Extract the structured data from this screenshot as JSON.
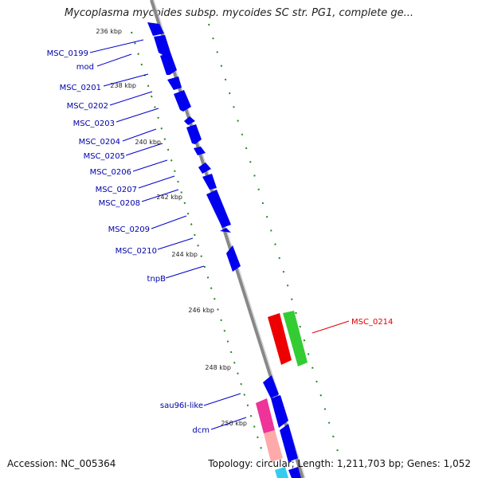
{
  "title": "Mycoplasma mycoides subsp. mycoides SC str. PG1, complete ge...",
  "footer": {
    "accession": "Accession: NC_005364",
    "summary": "Topology: circular; Length: 1,211,703 bp; Genes: 1,052"
  },
  "colors": {
    "backbone": "#888888",
    "gene_forward": "#0000ee",
    "gene_highlight_red": "#ee0000",
    "gene_highlight_green": "#33cc33",
    "gene_pink": "#ee3399",
    "gene_light_pink": "#ffaaaa",
    "gene_cyan": "#33ccee",
    "tick_green": "#228822",
    "label_blue": "#0000aa",
    "label_red": "#dd0000"
  },
  "ticks": [
    {
      "label": "236 kbp"
    },
    {
      "label": "238 kbp"
    },
    {
      "label": "240 kbp"
    },
    {
      "label": "242 kbp"
    },
    {
      "label": "244 kbp"
    },
    {
      "label": "246 kbp"
    },
    {
      "label": "248 kbp"
    },
    {
      "label": "250 kbp"
    }
  ],
  "gene_labels": [
    {
      "name": "MSC_0199",
      "color": "blue"
    },
    {
      "name": "mod",
      "color": "blue"
    },
    {
      "name": "MSC_0201",
      "color": "blue"
    },
    {
      "name": "MSC_0202",
      "color": "blue"
    },
    {
      "name": "MSC_0203",
      "color": "blue"
    },
    {
      "name": "MSC_0204",
      "color": "blue"
    },
    {
      "name": "MSC_0205",
      "color": "blue"
    },
    {
      "name": "MSC_0206",
      "color": "blue"
    },
    {
      "name": "MSC_0207",
      "color": "blue"
    },
    {
      "name": "MSC_0208",
      "color": "blue"
    },
    {
      "name": "MSC_0209",
      "color": "blue"
    },
    {
      "name": "MSC_0210",
      "color": "blue"
    },
    {
      "name": "tnpB",
      "color": "blue"
    },
    {
      "name": "MSC_0214",
      "color": "red"
    },
    {
      "name": "sau96I-like",
      "color": "blue"
    },
    {
      "name": "dcm",
      "color": "blue"
    }
  ]
}
